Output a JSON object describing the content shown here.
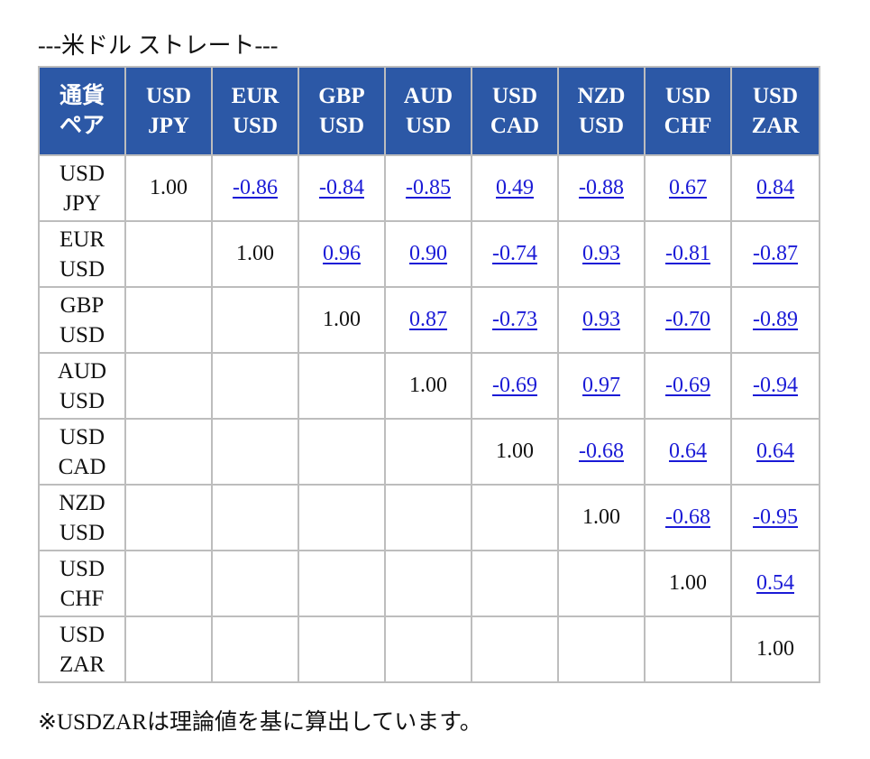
{
  "title": "---米ドル ストレート---",
  "table": {
    "corner": [
      "通貨",
      "ペア"
    ],
    "columns": [
      [
        "USD",
        "JPY"
      ],
      [
        "EUR",
        "USD"
      ],
      [
        "GBP",
        "USD"
      ],
      [
        "AUD",
        "USD"
      ],
      [
        "USD",
        "CAD"
      ],
      [
        "NZD",
        "USD"
      ],
      [
        "USD",
        "CHF"
      ],
      [
        "USD",
        "ZAR"
      ]
    ],
    "rows": [
      {
        "pair": [
          "USD",
          "JPY"
        ],
        "cells": [
          "1.00",
          "-0.86",
          "-0.84",
          "-0.85",
          "0.49",
          "-0.88",
          "0.67",
          "0.84"
        ]
      },
      {
        "pair": [
          "EUR",
          "USD"
        ],
        "cells": [
          "",
          "1.00",
          "0.96",
          "0.90",
          "-0.74",
          "0.93",
          "-0.81",
          "-0.87"
        ]
      },
      {
        "pair": [
          "GBP",
          "USD"
        ],
        "cells": [
          "",
          "",
          "1.00",
          "0.87",
          "-0.73",
          "0.93",
          "-0.70",
          "-0.89"
        ]
      },
      {
        "pair": [
          "AUD",
          "USD"
        ],
        "cells": [
          "",
          "",
          "",
          "1.00",
          "-0.69",
          "0.97",
          "-0.69",
          "-0.94"
        ]
      },
      {
        "pair": [
          "USD",
          "CAD"
        ],
        "cells": [
          "",
          "",
          "",
          "",
          "1.00",
          "-0.68",
          "0.64",
          "0.64"
        ]
      },
      {
        "pair": [
          "NZD",
          "USD"
        ],
        "cells": [
          "",
          "",
          "",
          "",
          "",
          "1.00",
          "-0.68",
          "-0.95"
        ]
      },
      {
        "pair": [
          "USD",
          "CHF"
        ],
        "cells": [
          "",
          "",
          "",
          "",
          "",
          "",
          "1.00",
          "0.54"
        ]
      },
      {
        "pair": [
          "USD",
          "ZAR"
        ],
        "cells": [
          "",
          "",
          "",
          "",
          "",
          "",
          "",
          "1.00"
        ]
      }
    ]
  },
  "note": "※USDZARは理論値を基に算出しています。",
  "colors": {
    "header_bg": "#2c58a6",
    "header_text": "#ffffff",
    "link": "#1a1ad6",
    "border": "#bdbdbd"
  }
}
